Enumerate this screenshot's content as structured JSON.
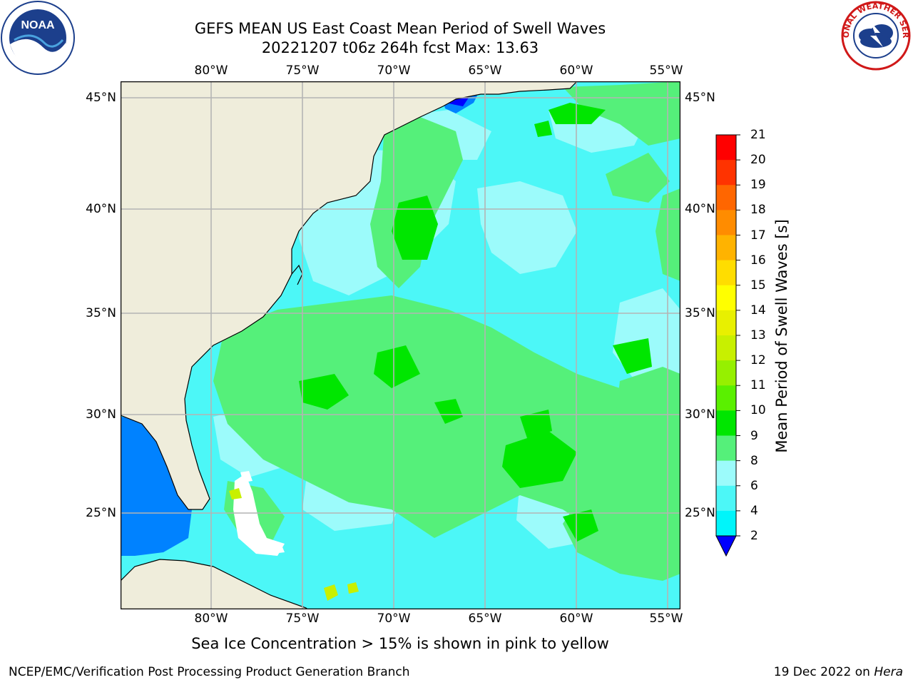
{
  "title": {
    "line1": "GEFS MEAN US East Coast Mean Period of Swell Waves",
    "line2": "20221207 t06z 264h fcst   Max: 13.63"
  },
  "logos": {
    "left": "NOAA",
    "right": "NATIONAL WEATHER SERVICE"
  },
  "map": {
    "longitude_labels": [
      "80°W",
      "75°W",
      "70°W",
      "65°W",
      "60°W",
      "55°W"
    ],
    "latitude_labels": [
      "45°N",
      "40°N",
      "35°N",
      "30°N",
      "25°N"
    ],
    "colors": {
      "land": "#efeddb",
      "coast": "#000000",
      "grid": "#b4b4b4"
    }
  },
  "colorbar": {
    "label": "Mean Period of Swell Waves [s]",
    "ticks": [
      "21",
      "20",
      "19",
      "18",
      "17",
      "16",
      "15",
      "14",
      "13",
      "12",
      "11",
      "10",
      "9",
      "8",
      "6",
      "4",
      "2"
    ],
    "colors": [
      "#ff0000",
      "#ff3300",
      "#ff6600",
      "#ff8c00",
      "#ffb300",
      "#ffdd00",
      "#ffff00",
      "#e8f000",
      "#c8f000",
      "#96f000",
      "#5af000",
      "#00e600",
      "#55f07a",
      "#9cfbfb",
      "#4cf7f7",
      "#00f5fa",
      "#0082ff"
    ],
    "extend_color": "#0000ff"
  },
  "note": "Sea Ice Concentration > 15% is shown in pink to yellow",
  "footer": {
    "credit": "NCEP/EMC/Verification Post Processing Product Generation Branch",
    "date_prefix": "19 Dec 2022 on",
    "machine": "Hera"
  }
}
